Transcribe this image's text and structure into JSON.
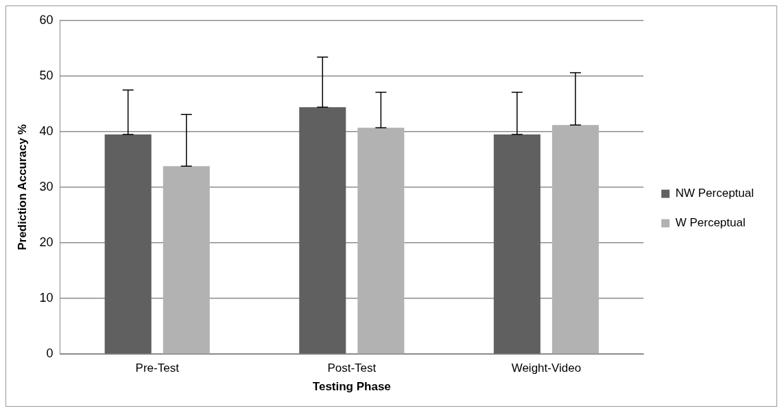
{
  "chart_data": {
    "type": "bar",
    "xlabel": "Testing Phase",
    "ylabel": "Prediction Accuracy %",
    "categories": [
      "Pre-Test",
      "Post-Test",
      "Weight-Video"
    ],
    "series": [
      {
        "name": "NW Perceptual",
        "color": "#606060",
        "values": [
          39.5,
          44.4,
          39.5
        ],
        "errors": [
          [
            39.5,
            47.5
          ],
          [
            44.4,
            53.4
          ],
          [
            39.5,
            47.1
          ]
        ]
      },
      {
        "name": "W Perceptual",
        "color": "#b2b2b2",
        "values": [
          33.8,
          40.7,
          41.2
        ],
        "errors": [
          [
            33.8,
            43.1
          ],
          [
            40.7,
            47.1
          ],
          [
            41.2,
            50.6
          ]
        ]
      }
    ],
    "ylim": [
      0,
      60
    ],
    "yticks": [
      0,
      10,
      20,
      30,
      40,
      50,
      60
    ],
    "grid": "y",
    "legend": "right"
  }
}
